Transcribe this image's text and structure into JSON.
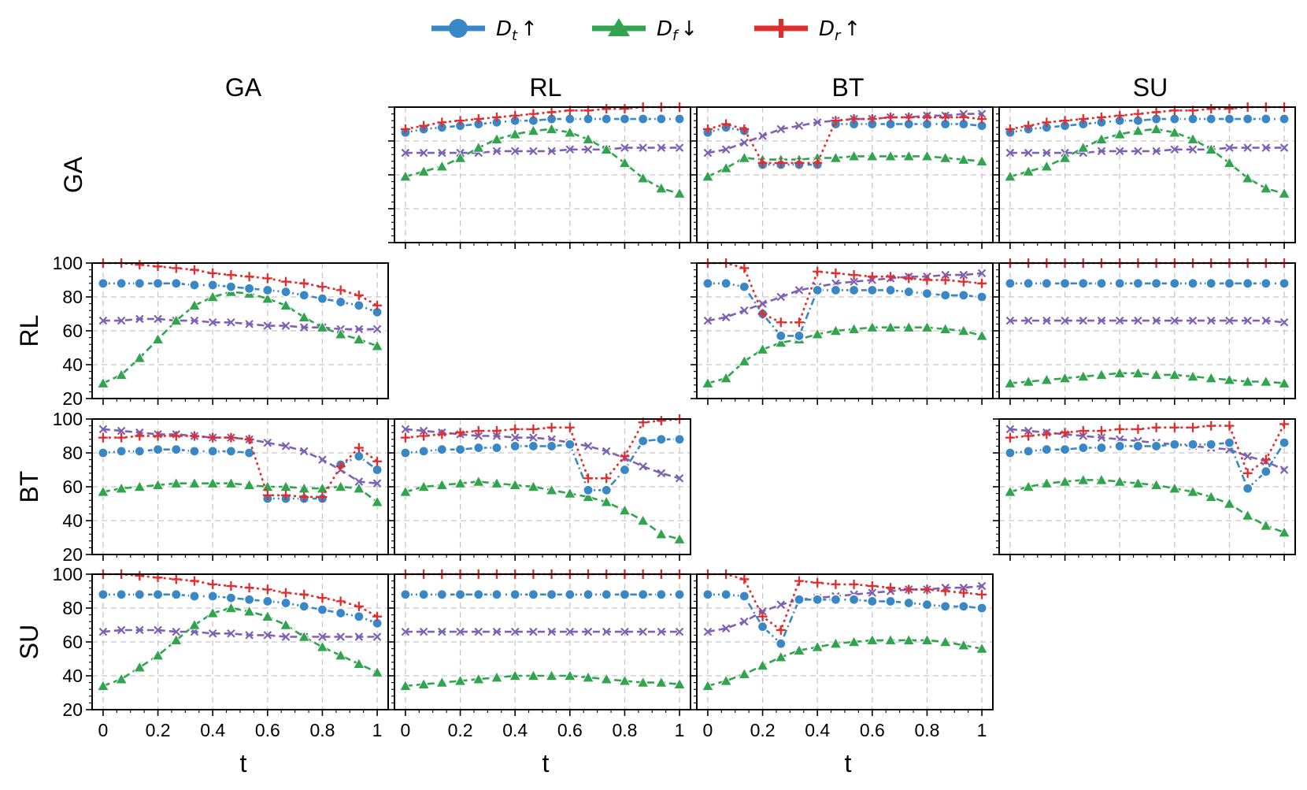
{
  "legend": [
    {
      "label": "D",
      "sub": "t",
      "arrow": "↑",
      "color": "#3a87c6",
      "marker": "circle"
    },
    {
      "label": "D",
      "sub": "f",
      "arrow": "↓",
      "color": "#32a34e",
      "marker": "triangle"
    },
    {
      "label": "D",
      "sub": "r",
      "arrow": "↑",
      "color": "#e02e2e",
      "marker": "plus"
    }
  ],
  "column_titles": [
    "GA",
    "RL",
    "BT",
    "SU"
  ],
  "row_titles": [
    "GA",
    "RL",
    "BT",
    "SU"
  ],
  "xlabel": "t",
  "chart_data": {
    "type": "line",
    "x": [
      0,
      0.0667,
      0.1333,
      0.2,
      0.2667,
      0.3333,
      0.4,
      0.4667,
      0.5333,
      0.6,
      0.6667,
      0.7333,
      0.8,
      0.8667,
      0.9333,
      1
    ],
    "xticks": [
      "0",
      "0.2",
      "0.4",
      "0.6",
      "0.8",
      "1"
    ],
    "yticks": [
      "20",
      "40",
      "60",
      "80",
      "100"
    ],
    "ylim": [
      20,
      100
    ],
    "xlim": [
      -0.04,
      1.04
    ],
    "grid": true,
    "legend_position": "top-center",
    "series_styles": {
      "Dt": {
        "color": "#3a87c6",
        "marker": "circle",
        "dash": "dash-dot"
      },
      "Df": {
        "color": "#32a34e",
        "marker": "triangle",
        "dash": "dashed"
      },
      "Dr": {
        "color": "#e02e2e",
        "marker": "plus",
        "dash": "dotted"
      },
      "extra": {
        "color": "#7d62b4",
        "marker": "x",
        "dash": "dashed"
      }
    },
    "panels": [
      {
        "row": 0,
        "col": 1,
        "yticklabels": false,
        "Dt": [
          85,
          87,
          88,
          89,
          90,
          91,
          92,
          92,
          93,
          93,
          93,
          93,
          93,
          93,
          93,
          93
        ],
        "Df": [
          59,
          62,
          65,
          70,
          76,
          81,
          84,
          86,
          87,
          85,
          81,
          75,
          67,
          58,
          52,
          49
        ],
        "Dr": [
          87,
          89,
          91,
          92,
          93,
          94,
          95,
          96,
          97,
          98,
          98,
          99,
          99,
          100,
          100,
          100
        ],
        "extra": [
          73,
          73,
          73,
          73,
          73,
          74,
          74,
          74,
          74,
          75,
          75,
          75,
          76,
          76,
          76,
          76
        ]
      },
      {
        "row": 0,
        "col": 2,
        "yticklabels": false,
        "Dt": [
          85,
          88,
          86,
          null,
          null,
          null,
          null,
          null,
          null,
          null,
          null,
          null,
          null,
          null,
          null,
          null
        ],
        "Dt2": [
          null,
          null,
          null,
          66,
          66,
          66,
          66,
          null,
          null,
          null,
          null,
          null,
          null,
          null,
          null,
          null
        ],
        "Dt3": [
          null,
          null,
          null,
          null,
          null,
          null,
          null,
          90,
          90,
          90,
          90,
          90,
          90,
          90,
          90,
          89
        ],
        "Df": [
          59,
          64,
          70,
          69,
          69,
          69,
          70,
          70,
          71,
          71,
          71,
          71,
          71,
          70,
          69,
          68
        ],
        "Dr": [
          87,
          90,
          87,
          67,
          67,
          67,
          67,
          92,
          93,
          93,
          94,
          94,
          94,
          94,
          94,
          93
        ],
        "extra": [
          73,
          75,
          79,
          83,
          87,
          89,
          91,
          92,
          93,
          93,
          94,
          94,
          95,
          95,
          96,
          96
        ]
      },
      {
        "row": 0,
        "col": 3,
        "yticklabels": false,
        "Dt": [
          85,
          87,
          88,
          89,
          90,
          91,
          92,
          92,
          93,
          93,
          93,
          93,
          93,
          93,
          93,
          93
        ],
        "Df": [
          59,
          62,
          65,
          70,
          76,
          81,
          84,
          86,
          87,
          85,
          81,
          75,
          67,
          58,
          52,
          49
        ],
        "Dr": [
          87,
          89,
          91,
          92,
          93,
          94,
          95,
          96,
          97,
          98,
          98,
          99,
          99,
          100,
          100,
          100
        ],
        "extra": [
          73,
          73,
          73,
          73,
          73,
          74,
          74,
          74,
          74,
          75,
          75,
          75,
          76,
          76,
          76,
          76
        ]
      },
      {
        "row": 1,
        "col": 0,
        "yticklabels": true,
        "Dt": [
          88,
          88,
          88,
          88,
          88,
          87,
          87,
          86,
          85,
          84,
          83,
          81,
          79,
          77,
          75,
          71
        ],
        "Df": [
          29,
          34,
          44,
          55,
          66,
          75,
          80,
          83,
          82,
          79,
          75,
          68,
          62,
          58,
          55,
          51
        ],
        "Dr": [
          100,
          100,
          99,
          98,
          97,
          96,
          94,
          93,
          92,
          91,
          89,
          88,
          86,
          84,
          81,
          75
        ],
        "extra": [
          66,
          66,
          67,
          67,
          66,
          66,
          65,
          65,
          64,
          63,
          63,
          62,
          62,
          61,
          61,
          61
        ]
      },
      {
        "row": 1,
        "col": 2,
        "yticklabels": false,
        "Dt": [
          88,
          88,
          86,
          70,
          57,
          57,
          84,
          84,
          84,
          84,
          84,
          83,
          82,
          81,
          81,
          80
        ],
        "Df": [
          29,
          32,
          42,
          49,
          53,
          55,
          58,
          60,
          61,
          62,
          62,
          62,
          62,
          61,
          60,
          57
        ],
        "Dr": [
          100,
          100,
          97,
          70,
          65,
          65,
          95,
          94,
          93,
          92,
          92,
          91,
          90,
          90,
          89,
          88
        ],
        "extra": [
          66,
          68,
          72,
          76,
          80,
          84,
          86,
          88,
          89,
          90,
          91,
          92,
          92,
          93,
          93,
          94
        ]
      },
      {
        "row": 1,
        "col": 3,
        "yticklabels": false,
        "Dt": [
          88,
          88,
          88,
          88,
          88,
          88,
          88,
          88,
          88,
          88,
          88,
          88,
          88,
          88,
          88,
          88
        ],
        "Df": [
          29,
          30,
          31,
          32,
          33,
          34,
          35,
          35,
          34,
          34,
          33,
          32,
          31,
          30,
          30,
          29
        ],
        "Dr": [
          100,
          100,
          100,
          100,
          100,
          100,
          100,
          100,
          100,
          100,
          100,
          100,
          100,
          100,
          100,
          100
        ],
        "extra": [
          66,
          66,
          66,
          66,
          66,
          66,
          66,
          66,
          66,
          66,
          66,
          66,
          66,
          66,
          66,
          65
        ]
      },
      {
        "row": 2,
        "col": 0,
        "yticklabels": true,
        "Dt": [
          80,
          81,
          81,
          82,
          82,
          81,
          81,
          81,
          80,
          null,
          null,
          null,
          null,
          null,
          null,
          null
        ],
        "Dt2": [
          null,
          null,
          null,
          null,
          null,
          null,
          null,
          null,
          null,
          53,
          53,
          53,
          53,
          null,
          null,
          null
        ],
        "Dt3": [
          null,
          null,
          null,
          null,
          null,
          null,
          null,
          null,
          null,
          null,
          null,
          null,
          null,
          73,
          78,
          70
        ],
        "Df": [
          57,
          59,
          60,
          61,
          62,
          62,
          62,
          62,
          61,
          60,
          60,
          59,
          59,
          60,
          59,
          51
        ],
        "Dr": [
          89,
          89,
          90,
          90,
          90,
          90,
          89,
          89,
          88,
          55,
          55,
          54,
          54,
          72,
          83,
          75
        ],
        "extra": [
          94,
          93,
          92,
          91,
          91,
          90,
          89,
          89,
          88,
          86,
          84,
          81,
          76,
          70,
          63,
          62
        ]
      },
      {
        "row": 2,
        "col": 1,
        "yticklabels": false,
        "Dt": [
          80,
          81,
          82,
          82,
          83,
          83,
          84,
          84,
          84,
          85,
          58,
          58,
          70,
          87,
          88,
          88
        ],
        "Df": [
          57,
          60,
          61,
          62,
          63,
          62,
          61,
          60,
          58,
          56,
          54,
          51,
          46,
          40,
          32,
          29
        ],
        "Dr": [
          89,
          90,
          91,
          92,
          93,
          93,
          94,
          94,
          95,
          95,
          65,
          65,
          78,
          98,
          99,
          100
        ],
        "extra": [
          94,
          93,
          92,
          91,
          90,
          90,
          89,
          89,
          88,
          86,
          84,
          81,
          77,
          72,
          68,
          65
        ]
      },
      {
        "row": 2,
        "col": 3,
        "yticklabels": false,
        "Dt": [
          80,
          81,
          82,
          82,
          83,
          83,
          84,
          84,
          84,
          85,
          85,
          85,
          86,
          59,
          69,
          86
        ],
        "Df": [
          57,
          60,
          62,
          63,
          64,
          64,
          63,
          62,
          61,
          59,
          57,
          54,
          50,
          43,
          37,
          33
        ],
        "Dr": [
          89,
          90,
          91,
          92,
          93,
          93,
          94,
          94,
          95,
          95,
          95,
          96,
          96,
          68,
          76,
          97
        ],
        "extra": [
          94,
          93,
          92,
          91,
          90,
          89,
          88,
          87,
          86,
          85,
          84,
          83,
          82,
          78,
          75,
          70
        ]
      },
      {
        "row": 3,
        "col": 0,
        "yticklabels": true,
        "Dt": [
          88,
          88,
          88,
          88,
          88,
          87,
          87,
          86,
          85,
          84,
          83,
          81,
          79,
          77,
          75,
          71
        ],
        "Df": [
          34,
          38,
          45,
          52,
          61,
          70,
          77,
          80,
          78,
          75,
          70,
          63,
          57,
          52,
          47,
          42
        ],
        "Dr": [
          100,
          100,
          99,
          98,
          97,
          96,
          94,
          93,
          92,
          91,
          89,
          88,
          86,
          84,
          81,
          75
        ],
        "extra": [
          66,
          67,
          67,
          67,
          66,
          66,
          65,
          65,
          64,
          64,
          63,
          63,
          63,
          63,
          63,
          63
        ]
      },
      {
        "row": 3,
        "col": 1,
        "yticklabels": false,
        "Dt": [
          88,
          88,
          88,
          88,
          88,
          88,
          88,
          88,
          88,
          88,
          88,
          88,
          88,
          88,
          88,
          88
        ],
        "Df": [
          34,
          35,
          36,
          37,
          38,
          39,
          40,
          40,
          40,
          40,
          39,
          38,
          37,
          36,
          36,
          35
        ],
        "Dr": [
          100,
          100,
          100,
          100,
          100,
          100,
          100,
          100,
          100,
          100,
          100,
          100,
          100,
          100,
          100,
          100
        ],
        "extra": [
          66,
          66,
          66,
          66,
          66,
          66,
          66,
          66,
          66,
          66,
          66,
          66,
          66,
          66,
          66,
          66
        ]
      },
      {
        "row": 3,
        "col": 2,
        "yticklabels": false,
        "Dt": [
          88,
          88,
          87,
          69,
          59,
          85,
          85,
          85,
          85,
          84,
          84,
          83,
          82,
          81,
          81,
          80
        ],
        "Df": [
          34,
          37,
          41,
          46,
          51,
          55,
          57,
          59,
          60,
          61,
          61,
          61,
          61,
          60,
          58,
          56
        ],
        "Dr": [
          100,
          100,
          97,
          75,
          67,
          96,
          95,
          94,
          94,
          93,
          92,
          91,
          91,
          90,
          89,
          88
        ],
        "extra": [
          66,
          68,
          72,
          78,
          82,
          85,
          86,
          87,
          88,
          89,
          90,
          91,
          91,
          92,
          92,
          93
        ]
      }
    ]
  }
}
